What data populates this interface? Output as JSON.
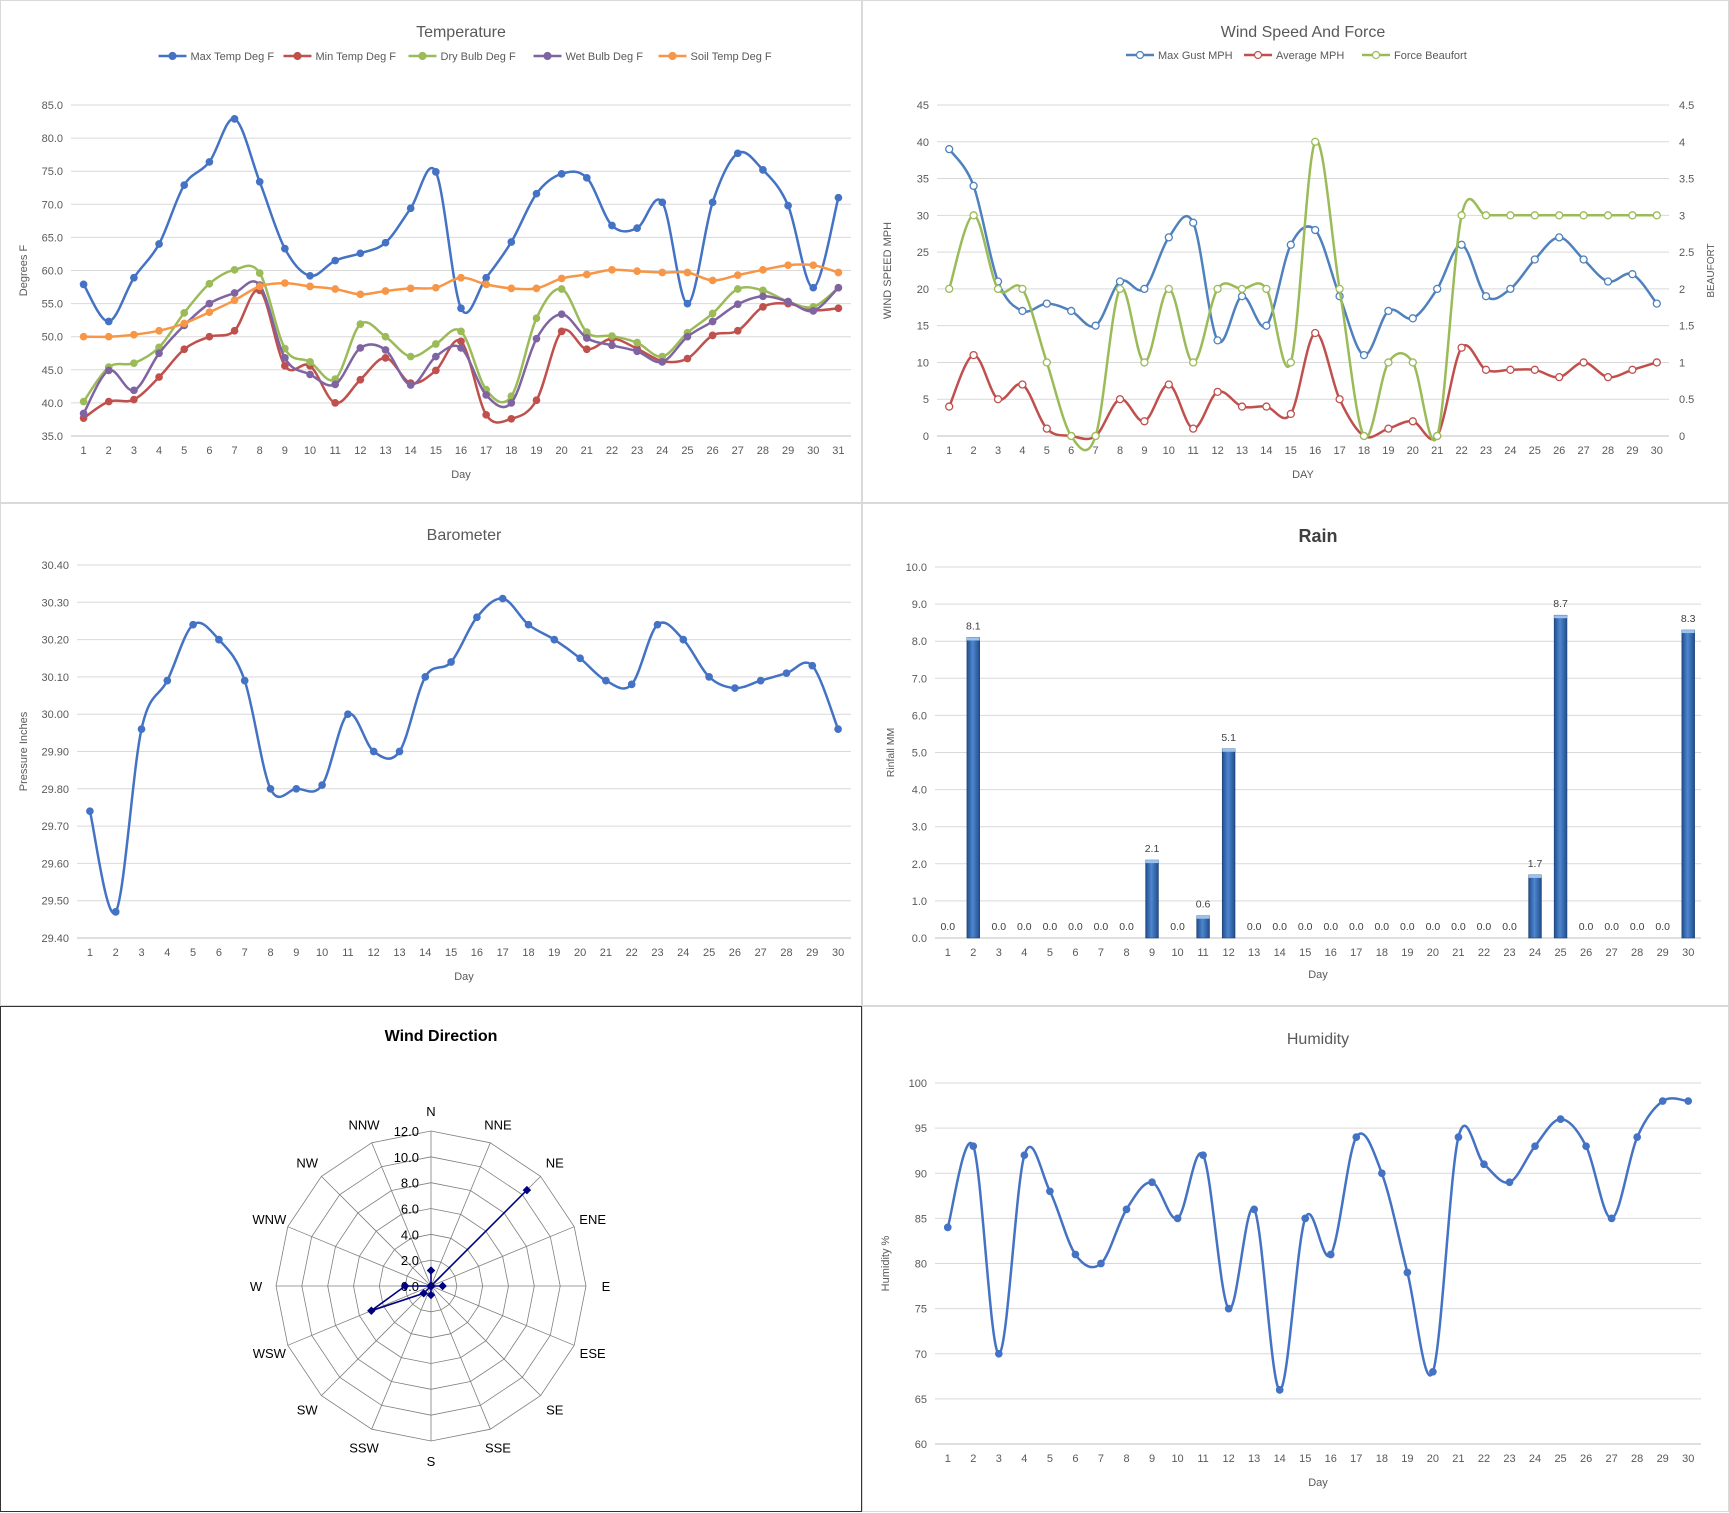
{
  "chart_data": [
    {
      "id": "temperature",
      "type": "line",
      "title": "Temperature",
      "xlabel": "Day",
      "ylabel": "Degrees F",
      "ylim": [
        35.0,
        85.0
      ],
      "ystep": 5,
      "ydecimals": 1,
      "legend_position": "top",
      "grid": true,
      "x": [
        1,
        2,
        3,
        4,
        5,
        6,
        7,
        8,
        9,
        10,
        11,
        12,
        13,
        14,
        15,
        16,
        17,
        18,
        19,
        20,
        21,
        22,
        23,
        24,
        25,
        26,
        27,
        28,
        29,
        30,
        31
      ],
      "series": [
        {
          "name": "Max Temp Deg F",
          "color": "#4472c4",
          "marker": "filled",
          "values": [
            57.9,
            52.3,
            58.9,
            64.0,
            72.9,
            76.4,
            82.9,
            73.4,
            63.3,
            59.2,
            61.5,
            62.6,
            64.2,
            69.4,
            74.9,
            54.3,
            58.9,
            64.3,
            71.6,
            74.6,
            74.0,
            66.8,
            66.4,
            70.3,
            55.0,
            70.3,
            77.7,
            75.2,
            69.8,
            57.4,
            71.0
          ]
        },
        {
          "name": "Min Temp Deg F",
          "color": "#c0504d",
          "marker": "filled",
          "values": [
            37.7,
            40.2,
            40.5,
            43.9,
            48.1,
            50.0,
            50.9,
            57.0,
            45.6,
            45.6,
            40.0,
            43.5,
            46.8,
            43.0,
            44.9,
            49.3,
            38.2,
            37.6,
            40.4,
            50.8,
            48.1,
            49.7,
            48.2,
            46.3,
            46.7,
            50.2,
            50.9,
            54.5,
            55.0,
            54.0,
            54.3
          ]
        },
        {
          "name": "Dry Bulb Deg F",
          "color": "#9bbb59",
          "marker": "filled",
          "values": [
            40.2,
            45.4,
            46.0,
            48.4,
            53.6,
            58.0,
            60.1,
            59.6,
            48.2,
            46.2,
            43.6,
            51.9,
            50.0,
            47.0,
            48.9,
            50.8,
            42.0,
            41.0,
            52.8,
            57.2,
            50.7,
            50.1,
            49.1,
            47.0,
            50.6,
            53.5,
            57.2,
            57.0,
            55.3,
            54.5,
            57.4
          ]
        },
        {
          "name": "Wet Bulb Deg F",
          "color": "#8064a2",
          "marker": "filled",
          "values": [
            38.4,
            44.9,
            41.9,
            47.5,
            51.7,
            55.0,
            56.6,
            57.8,
            46.8,
            44.3,
            42.8,
            48.3,
            48.0,
            42.7,
            47.0,
            48.3,
            41.2,
            40.0,
            49.7,
            53.4,
            49.8,
            48.7,
            47.8,
            46.2,
            50.0,
            52.3,
            54.9,
            56.1,
            55.3,
            53.9,
            57.4
          ]
        },
        {
          "name": "Soil Temp Deg F",
          "color": "#f79646",
          "marker": "filled",
          "values": [
            50.0,
            50.0,
            50.3,
            50.9,
            52.0,
            53.7,
            55.5,
            57.6,
            58.1,
            57.6,
            57.2,
            56.4,
            56.9,
            57.3,
            57.4,
            58.9,
            57.9,
            57.3,
            57.3,
            58.8,
            59.4,
            60.1,
            59.9,
            59.7,
            59.7,
            58.5,
            59.3,
            60.1,
            60.8,
            60.8,
            59.7
          ]
        }
      ]
    },
    {
      "id": "wind",
      "type": "line",
      "title": "Wind Speed And Force",
      "xlabel": "DAY",
      "ylabel": "WIND SPEED MPH",
      "ylabel_right": "BEAUFORT",
      "ylim": [
        0,
        45
      ],
      "ystep": 5,
      "ylim_right": [
        0,
        4.5
      ],
      "ystep_right": 0.5,
      "legend_position": "top",
      "grid": true,
      "x": [
        1,
        2,
        3,
        4,
        5,
        6,
        7,
        8,
        9,
        10,
        11,
        12,
        13,
        14,
        15,
        16,
        17,
        18,
        19,
        20,
        21,
        22,
        23,
        24,
        25,
        26,
        27,
        28,
        29,
        30
      ],
      "series": [
        {
          "name": "Max Gust MPH",
          "color": "#4f81bd",
          "marker": "hollow",
          "axis": "left",
          "values": [
            39,
            34,
            21,
            17,
            18,
            17,
            15,
            21,
            20,
            27,
            29,
            13,
            19,
            15,
            26,
            28,
            19,
            11,
            17,
            16,
            20,
            26,
            19,
            20,
            24,
            27,
            24,
            21,
            22,
            18
          ]
        },
        {
          "name": "Average MPH",
          "color": "#c0504d",
          "marker": "hollow",
          "axis": "left",
          "values": [
            4,
            11,
            5,
            7,
            1,
            0,
            0,
            5,
            2,
            7,
            1,
            6,
            4,
            4,
            3,
            14,
            5,
            0,
            1,
            2,
            0,
            12,
            9,
            9,
            9,
            8,
            10,
            8,
            9,
            10
          ]
        },
        {
          "name": "Force Beaufort",
          "color": "#9bbb59",
          "marker": "hollow",
          "axis": "right",
          "values": [
            2,
            3,
            2,
            2,
            1,
            0,
            0,
            2,
            1,
            2,
            1,
            2,
            2,
            2,
            1,
            4,
            2,
            0,
            1,
            1,
            0,
            3,
            3,
            3,
            3,
            3,
            3,
            3,
            3,
            3
          ]
        }
      ]
    },
    {
      "id": "barometer",
      "type": "line",
      "title": "Barometer",
      "xlabel": "Day",
      "ylabel": "Pressure Inches",
      "ylim": [
        29.4,
        30.4
      ],
      "ystep": 0.1,
      "ydecimals": 2,
      "grid": true,
      "x": [
        1,
        2,
        3,
        4,
        5,
        6,
        7,
        8,
        9,
        10,
        11,
        12,
        13,
        14,
        15,
        16,
        17,
        18,
        19,
        20,
        21,
        22,
        23,
        24,
        25,
        26,
        27,
        28,
        29,
        30
      ],
      "series": [
        {
          "name": "",
          "color": "#4472c4",
          "marker": "filled",
          "values": [
            29.74,
            29.47,
            29.96,
            30.09,
            30.24,
            30.2,
            30.09,
            29.8,
            29.8,
            29.81,
            30.0,
            29.9,
            29.9,
            30.1,
            30.14,
            30.26,
            30.31,
            30.24,
            30.2,
            30.15,
            30.09,
            30.08,
            30.24,
            30.2,
            30.1,
            30.07,
            30.09,
            30.11,
            30.13,
            29.96
          ]
        }
      ]
    },
    {
      "id": "rain",
      "type": "bar",
      "title": "Rain",
      "xlabel": "Day",
      "ylabel": "Rinfall MM",
      "ylim": [
        0.0,
        10.0
      ],
      "ystep": 1,
      "ydecimals": 1,
      "grid": true,
      "categories": [
        "1",
        "2",
        "3",
        "4",
        "5",
        "6",
        "7",
        "8",
        "9",
        "10",
        "11",
        "12",
        "13",
        "14",
        "15",
        "16",
        "17",
        "18",
        "19",
        "20",
        "21",
        "22",
        "23",
        "24",
        "25",
        "26",
        "27",
        "28",
        "29",
        "30"
      ],
      "values": [
        0.0,
        8.1,
        0.0,
        0.0,
        0.0,
        0.0,
        0.0,
        0.0,
        2.1,
        0.0,
        0.6,
        5.1,
        0.0,
        0.0,
        0.0,
        0.0,
        0.0,
        0.0,
        0.0,
        0.0,
        0.0,
        0.0,
        0.0,
        1.7,
        8.7,
        0.0,
        0.0,
        0.0,
        0.0,
        8.3
      ],
      "data_labels": [
        "0.0",
        "8.1",
        "0.0",
        "0.0",
        "0.0",
        "0.0",
        "0.0",
        "0.0",
        "2.1",
        "0.0",
        "0.6",
        "5.1",
        "0.0",
        "0.0",
        "0.0",
        "0.0",
        "0.0",
        "0.0",
        "0.0",
        "0.0",
        "0.0",
        "0.0",
        "0.0",
        "1.7",
        "8.7",
        "0.0",
        "0.0",
        "0.0",
        "0.0",
        "8.3"
      ]
    },
    {
      "id": "winddir",
      "type": "radar",
      "title": "Wind Direction",
      "rlim": [
        0,
        12
      ],
      "rstep": 2,
      "rlabels": [
        "0.0",
        "2.0",
        "4.0",
        "6.0",
        "8.0",
        "10.0",
        "12.0"
      ],
      "categories": [
        "N",
        "NNE",
        "NE",
        "ENE",
        "E",
        "ESE",
        "SE",
        "SSE",
        "S",
        "SSW",
        "SW",
        "WSW",
        "W",
        "WNW",
        "NW",
        "NNW"
      ],
      "values": [
        1.2,
        0,
        10.5,
        0,
        0.9,
        0,
        0,
        0,
        0.7,
        0,
        0.8,
        5.0,
        2.0,
        0,
        0,
        0
      ],
      "color": "#000080"
    },
    {
      "id": "humidity",
      "type": "line",
      "title": "Humidity",
      "xlabel": "Day",
      "ylabel": "Humidity %",
      "ylim": [
        60,
        100
      ],
      "ystep": 5,
      "ydecimals": 0,
      "grid": true,
      "x": [
        1,
        2,
        3,
        4,
        5,
        6,
        7,
        8,
        9,
        10,
        11,
        12,
        13,
        14,
        15,
        16,
        17,
        18,
        19,
        20,
        21,
        22,
        23,
        24,
        25,
        26,
        27,
        28,
        29,
        30
      ],
      "series": [
        {
          "name": "",
          "color": "#4472c4",
          "marker": "filled",
          "values": [
            84,
            93,
            70,
            92,
            88,
            81,
            80,
            86,
            89,
            85,
            92,
            75,
            86,
            66,
            85,
            81,
            94,
            90,
            79,
            68,
            94,
            91,
            89,
            93,
            96,
            93,
            85,
            94,
            98,
            98
          ]
        }
      ]
    }
  ]
}
